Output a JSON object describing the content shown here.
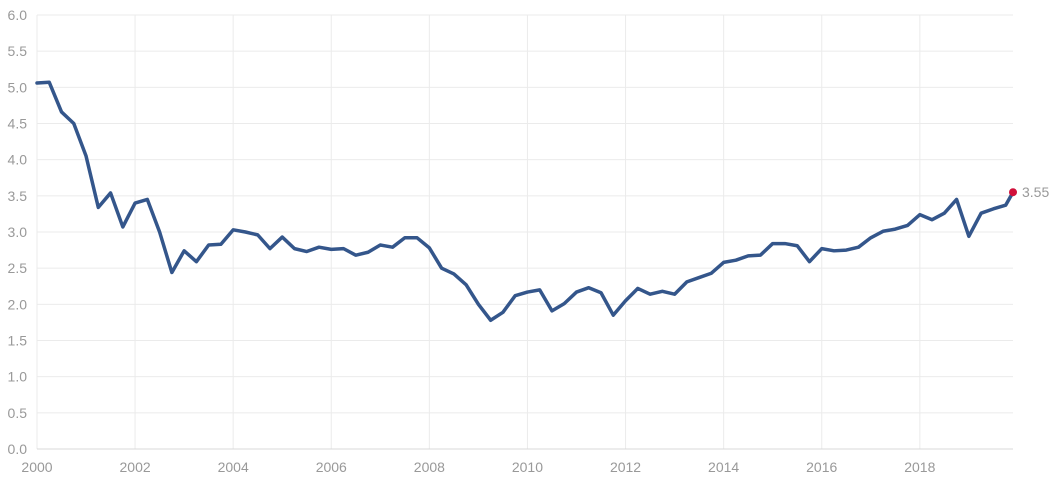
{
  "chart_data": {
    "type": "line",
    "title": "",
    "xlabel": "",
    "ylabel": "",
    "xlim": [
      2000,
      2019.9
    ],
    "ylim": [
      0,
      6
    ],
    "xticks": [
      2000,
      2002,
      2004,
      2006,
      2008,
      2010,
      2012,
      2014,
      2016,
      2018
    ],
    "xtick_labels": [
      "2000",
      "2002",
      "2004",
      "2006",
      "2008",
      "2010",
      "2012",
      "2014",
      "2016",
      "2018"
    ],
    "yticks": [
      0,
      0.5,
      1,
      1.5,
      2,
      2.5,
      3,
      3.5,
      4,
      4.5,
      5,
      5.5,
      6
    ],
    "ytick_labels": [
      "0.0",
      "0.5",
      "1.0",
      "1.5",
      "2.0",
      "2.5",
      "3.0",
      "3.5",
      "4.0",
      "4.5",
      "5.0",
      "5.5",
      "6.0"
    ],
    "grid": true,
    "legend": "none",
    "series": [
      {
        "color": "#34568b",
        "x": [
          2000.0,
          2000.25,
          2000.5,
          2000.75,
          2001.0,
          2001.25,
          2001.5,
          2001.75,
          2002.0,
          2002.25,
          2002.5,
          2002.75,
          2003.0,
          2003.25,
          2003.5,
          2003.75,
          2004.0,
          2004.25,
          2004.5,
          2004.75,
          2005.0,
          2005.25,
          2005.5,
          2005.75,
          2006.0,
          2006.25,
          2006.5,
          2006.75,
          2007.0,
          2007.25,
          2007.5,
          2007.75,
          2008.0,
          2008.25,
          2008.5,
          2008.75,
          2009.0,
          2009.25,
          2009.5,
          2009.75,
          2010.0,
          2010.25,
          2010.5,
          2010.75,
          2011.0,
          2011.25,
          2011.5,
          2011.75,
          2012.0,
          2012.25,
          2012.5,
          2012.75,
          2013.0,
          2013.25,
          2013.5,
          2013.75,
          2014.0,
          2014.25,
          2014.5,
          2014.75,
          2015.0,
          2015.25,
          2015.5,
          2015.75,
          2016.0,
          2016.25,
          2016.5,
          2016.75,
          2017.0,
          2017.25,
          2017.5,
          2017.75,
          2018.0,
          2018.25,
          2018.5,
          2018.75,
          2019.0,
          2019.25,
          2019.5,
          2019.75,
          2019.9
        ],
        "y": [
          5.06,
          5.07,
          4.66,
          4.5,
          4.05,
          3.34,
          3.54,
          3.07,
          3.4,
          3.45,
          3.0,
          2.44,
          2.74,
          2.59,
          2.82,
          2.83,
          3.03,
          3.0,
          2.96,
          2.77,
          2.93,
          2.77,
          2.73,
          2.79,
          2.76,
          2.77,
          2.68,
          2.72,
          2.82,
          2.79,
          2.92,
          2.92,
          2.78,
          2.5,
          2.42,
          2.27,
          2.0,
          1.78,
          1.89,
          2.12,
          2.17,
          2.2,
          1.91,
          2.01,
          2.17,
          2.23,
          2.16,
          1.85,
          2.05,
          2.22,
          2.14,
          2.18,
          2.14,
          2.31,
          2.37,
          2.43,
          2.58,
          2.61,
          2.67,
          2.68,
          2.84,
          2.84,
          2.81,
          2.59,
          2.77,
          2.74,
          2.75,
          2.79,
          2.92,
          3.01,
          3.04,
          3.09,
          3.24,
          3.17,
          3.26,
          3.45,
          2.94,
          3.26,
          3.32,
          3.37,
          3.55
        ]
      }
    ],
    "annotations": [
      {
        "x": 2019.9,
        "y": 3.55,
        "label": "3.55",
        "marker_color": "#d0103a"
      }
    ]
  }
}
